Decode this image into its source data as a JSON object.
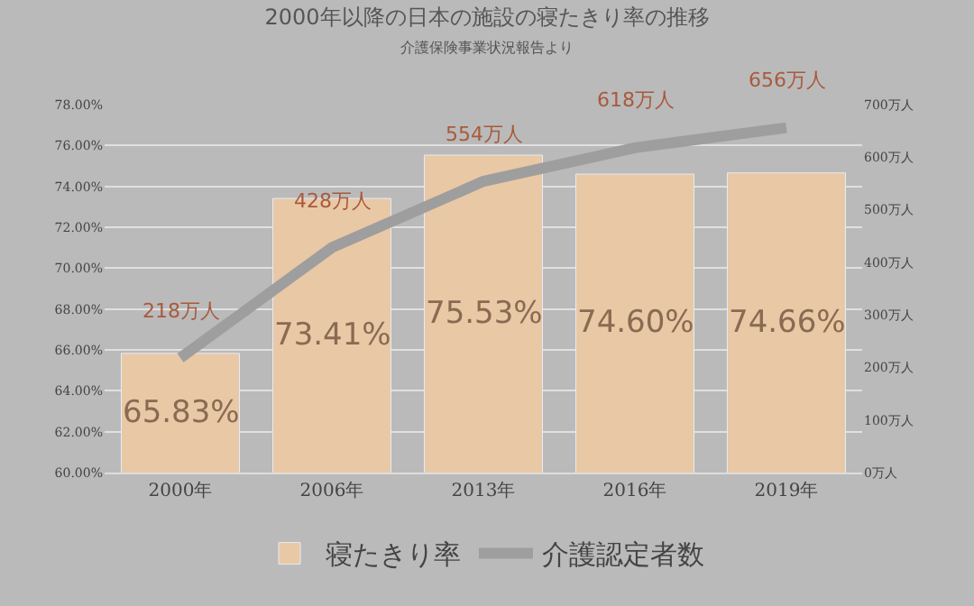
{
  "chart_data": {
    "type": "bar",
    "title": "2000年以降の日本の施設の寝たきり率の推移",
    "subtitle": "介護保険事業状況報告より",
    "categories": [
      "2000年",
      "2006年",
      "2013年",
      "2016年",
      "2019年"
    ],
    "series": [
      {
        "name": "寝たきり率",
        "color": "#e9c8a5",
        "values": [
          65.83,
          73.41,
          75.53,
          74.6,
          74.66
        ],
        "value_labels": [
          "65.83%",
          "73.41%",
          "75.53%",
          "74.60%",
          "74.66%"
        ]
      },
      {
        "name": "介護認定者数",
        "type": "line",
        "axis": "y2",
        "color": "#9e9e9e",
        "values": [
          218,
          428,
          554,
          618,
          656
        ],
        "value_labels": [
          "218万人",
          "428万人",
          "554万人",
          "618万人",
          "656万人"
        ]
      }
    ],
    "ylim": [
      60,
      78
    ],
    "yticks": [
      {
        "value": 60,
        "label": "60.00%"
      },
      {
        "value": 62,
        "label": "62.00%"
      },
      {
        "value": 64,
        "label": "64.00%"
      },
      {
        "value": 66,
        "label": "66.00%"
      },
      {
        "value": 68,
        "label": "68.00%"
      },
      {
        "value": 70,
        "label": "70.00%"
      },
      {
        "value": 72,
        "label": "72.00%"
      },
      {
        "value": 74,
        "label": "74.00%"
      },
      {
        "value": 76,
        "label": "76.00%"
      },
      {
        "value": 78,
        "label": "78.00%"
      }
    ],
    "y2lim": [
      0,
      700
    ],
    "y2ticks": [
      {
        "value": 0,
        "label": "0万人"
      },
      {
        "value": 100,
        "label": "100万人"
      },
      {
        "value": 200,
        "label": "200万人"
      },
      {
        "value": 300,
        "label": "300万人"
      },
      {
        "value": 400,
        "label": "400万人"
      },
      {
        "value": 500,
        "label": "500万人"
      },
      {
        "value": 600,
        "label": "600万人"
      },
      {
        "value": 700,
        "label": "700万人"
      }
    ],
    "grid": "y",
    "legend": "bottom",
    "marker": "none",
    "line_style": "solid"
  }
}
